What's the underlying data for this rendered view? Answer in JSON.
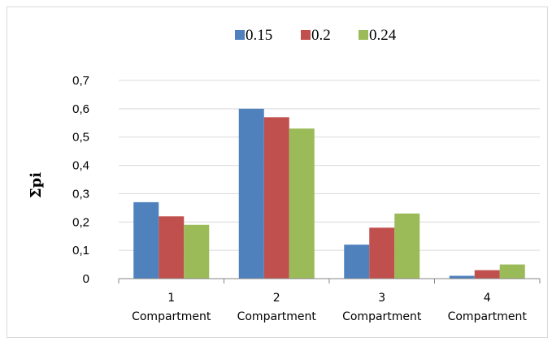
{
  "chart_data": {
    "type": "bar",
    "categories": [
      [
        "1",
        "Compartment"
      ],
      [
        "2",
        "Compartment"
      ],
      [
        "3",
        "Compartment"
      ],
      [
        "4",
        "Compartment"
      ]
    ],
    "series": [
      {
        "name": "0.15",
        "color": "#4f81bd",
        "values": [
          0.27,
          0.6,
          0.12,
          0.01
        ]
      },
      {
        "name": "0.2",
        "color": "#c0504d",
        "values": [
          0.22,
          0.57,
          0.18,
          0.03
        ]
      },
      {
        "name": "0.24",
        "color": "#9bbb59",
        "values": [
          0.19,
          0.53,
          0.23,
          0.05
        ]
      }
    ],
    "yticks": [
      "0",
      "0,1",
      "0,2",
      "0,3",
      "0,4",
      "0,5",
      "0,6",
      "0,7"
    ],
    "ylim": [
      0,
      0.7
    ],
    "ylabel": "Σpi",
    "xlabel": "",
    "title": "",
    "legend_position": "top",
    "grid": true,
    "gridline_color": "#d9d9d9",
    "axis_color": "#868686"
  }
}
